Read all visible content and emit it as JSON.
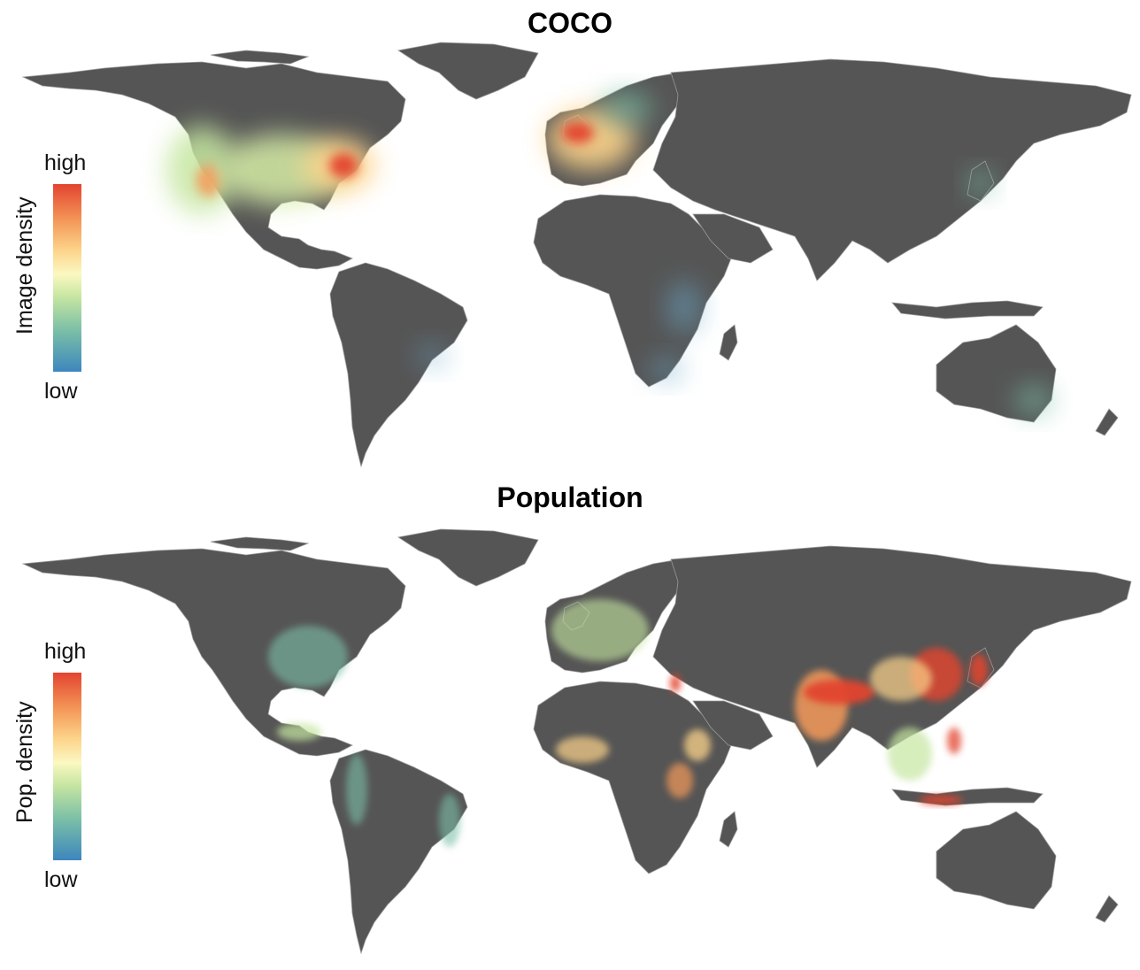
{
  "panels": [
    {
      "title": "COCO",
      "legend": {
        "title": "Image density",
        "high": "high",
        "low": "low"
      },
      "hotspots": [
        "Eastern United States",
        "Western United States",
        "United Kingdom",
        "Western Europe",
        "Japan",
        "East Africa",
        "Southeastern Australia"
      ]
    },
    {
      "title": "Population",
      "legend": {
        "title": "Pop. density",
        "high": "high",
        "low": "low"
      },
      "hotspots": [
        "India",
        "Bangladesh",
        "Eastern China",
        "Java",
        "Japan",
        "Nigeria",
        "Ethiopia",
        "Nile Delta"
      ]
    }
  ],
  "colors": {
    "land": "#555555",
    "borders": "#9a9a9a",
    "scale_low": "#3d86bd",
    "scale_mid": "#fbf8c2",
    "scale_high": "#e3442f"
  }
}
